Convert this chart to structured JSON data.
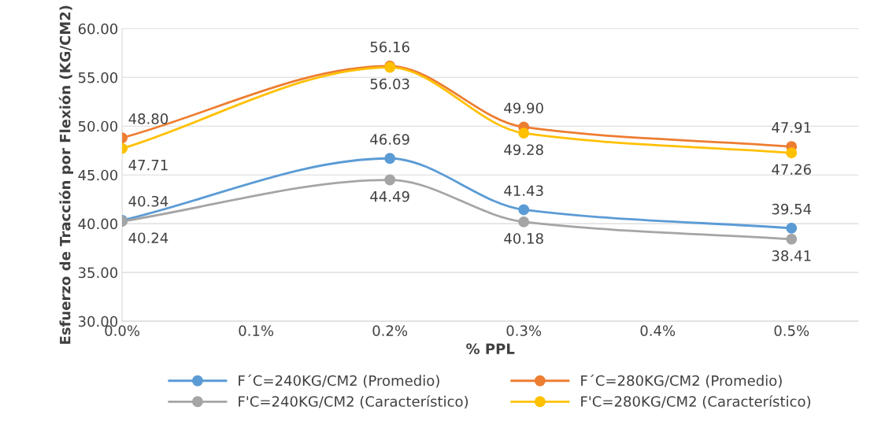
{
  "chart_data": {
    "type": "line",
    "xlabel": "% PPL",
    "ylabel": "Esfuerzo de Tracción por Flexión (KG/CM2)",
    "x": [
      0,
      0.2,
      0.3,
      0.5
    ],
    "series": [
      {
        "name": "F´C=240KG/CM2 (Promedio)",
        "color": "#5b9bd5",
        "values": [
          40.34,
          46.69,
          41.43,
          39.54
        ],
        "value_labels": [
          "40.34",
          "46.69",
          "41.43",
          "39.54"
        ]
      },
      {
        "name": "F´C=280KG/CM2 (Promedio)",
        "color": "#ed7d31",
        "values": [
          48.8,
          56.16,
          49.9,
          47.91
        ],
        "value_labels": [
          "48.80",
          "56.16",
          "49.90",
          "47.91"
        ]
      },
      {
        "name": "F'C=240KG/CM2 (Característico)",
        "color": "#a5a5a5",
        "values": [
          40.24,
          44.49,
          40.18,
          38.41
        ],
        "value_labels": [
          "40.24",
          "44.49",
          "40.18",
          "38.41"
        ]
      },
      {
        "name": "F'C=280KG/CM2 (Característico)",
        "color": "#ffc000",
        "values": [
          47.71,
          56.03,
          49.28,
          47.26
        ],
        "value_labels": [
          "47.71",
          "56.03",
          "49.28",
          "47.26"
        ]
      }
    ],
    "xlim": [
      0,
      0.55
    ],
    "xticks": [
      {
        "value": 0,
        "label": "0.0%"
      },
      {
        "value": 0.1,
        "label": "0.1%"
      },
      {
        "value": 0.2,
        "label": "0.2%"
      },
      {
        "value": 0.3,
        "label": "0.3%"
      },
      {
        "value": 0.4,
        "label": "0.4%"
      },
      {
        "value": 0.5,
        "label": "0.5%"
      }
    ],
    "ylim": [
      30,
      60
    ],
    "yticks": [
      {
        "value": 30,
        "label": "30.00"
      },
      {
        "value": 35,
        "label": "35.00"
      },
      {
        "value": 40,
        "label": "40.00"
      },
      {
        "value": 45,
        "label": "45.00"
      },
      {
        "value": 50,
        "label": "50.00"
      },
      {
        "value": 55,
        "label": "55.00"
      },
      {
        "value": 60,
        "label": "60.00"
      }
    ],
    "grid": "y",
    "legend": "bottom",
    "marker": "circle",
    "line_style": "solid"
  }
}
